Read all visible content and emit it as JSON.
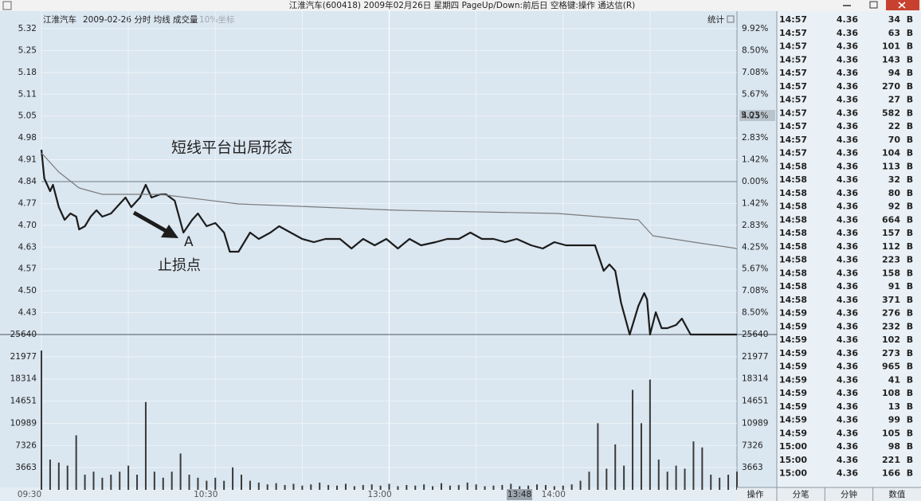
{
  "window": {
    "title": "江淮汽车(600418) 2009年02月26日 星期四 PageUp/Down:前后日 空格键:操作 通达信(R)"
  },
  "header": {
    "stock": "江淮汽车",
    "info": "2009-02-26 分时 均线 成交量",
    "coord": "10%坐标",
    "stats": "统计"
  },
  "cursor": {
    "price": "5.03",
    "time": "13:48"
  },
  "toolbar": {
    "left": "操作",
    "tabs": [
      "分笔",
      "分钟",
      "数值"
    ]
  },
  "chart_data": [
    {
      "type": "line",
      "annotations": [
        "短线平台出局形态",
        "A",
        "止损点"
      ],
      "xlim": [
        0,
        240
      ],
      "xticks": [
        {
          "value": 0,
          "label": "09:30"
        },
        {
          "value": 30,
          "label": null
        },
        {
          "value": 60,
          "label": "10:30"
        },
        {
          "value": 90,
          "label": null
        },
        {
          "value": 120,
          "label": "13:00"
        },
        {
          "value": 150,
          "label": null
        },
        {
          "value": 180,
          "label": "14:00"
        },
        {
          "value": 210,
          "label": null
        }
      ],
      "ylim": [
        4.3599,
        5.3201
      ],
      "yticks": [
        {
          "value": 5.3201,
          "label": "5.32"
        },
        {
          "value": 5.2514,
          "label": "5.25"
        },
        {
          "value": 5.1827,
          "label": "5.18"
        },
        {
          "value": 5.1144,
          "label": "5.11"
        },
        {
          "value": 5.0457,
          "label": "5.05"
        },
        {
          "value": 4.977,
          "label": "4.98"
        },
        {
          "value": 4.9087,
          "label": "4.91"
        },
        {
          "value": 4.84,
          "label": "4.84"
        },
        {
          "value": 4.7713,
          "label": "4.77"
        },
        {
          "value": 4.703,
          "label": "4.70"
        },
        {
          "value": 4.6343,
          "label": "4.63"
        },
        {
          "value": 4.5656,
          "label": "4.57"
        },
        {
          "value": 4.4973,
          "label": "4.50"
        },
        {
          "value": 4.4286,
          "label": "4.43"
        }
      ],
      "y2lim": [
        -9.92,
        9.92
      ],
      "y2ticks": [
        {
          "value": 9.92,
          "label": "9.92%"
        },
        {
          "value": 8.5,
          "label": "8.50%"
        },
        {
          "value": 7.08,
          "label": "7.08%"
        },
        {
          "value": 5.67,
          "label": "5.67%"
        },
        {
          "value": 4.25,
          "label": "4.25%"
        },
        {
          "value": 2.83,
          "label": "2.83%"
        },
        {
          "value": 1.42,
          "label": "1.42%"
        },
        {
          "value": 0,
          "label": "0.00%"
        },
        {
          "value": -1.42,
          "label": "1.42%"
        },
        {
          "value": -2.83,
          "label": "2.83%"
        },
        {
          "value": -4.25,
          "label": "4.25%"
        },
        {
          "value": -5.67,
          "label": "5.67%"
        },
        {
          "value": -7.08,
          "label": "7.08%"
        },
        {
          "value": -8.5,
          "label": "8.50%"
        }
      ],
      "grid": true,
      "series": [
        {
          "color": "#1c1c1c",
          "x": [
            0,
            1,
            3,
            4,
            6,
            8,
            10,
            12,
            13,
            15,
            17,
            19,
            21,
            24,
            27,
            29,
            31,
            34,
            36,
            38,
            41,
            43,
            46,
            49,
            52,
            54,
            57,
            60,
            63,
            65,
            68,
            72,
            75,
            79,
            82,
            86,
            90,
            94,
            98,
            103,
            107,
            111,
            115,
            119,
            123,
            127,
            131,
            136,
            140,
            144,
            148,
            152,
            156,
            160,
            164,
            169,
            173,
            177,
            181,
            185,
            191,
            194,
            196,
            198,
            200,
            203,
            206,
            208,
            209,
            210,
            212,
            214,
            216,
            219,
            221,
            224,
            240
          ],
          "values": [
            4.94,
            4.85,
            4.81,
            4.83,
            4.76,
            4.72,
            4.74,
            4.73,
            4.69,
            4.7,
            4.73,
            4.75,
            4.73,
            4.74,
            4.77,
            4.79,
            4.76,
            4.79,
            4.83,
            4.79,
            4.8,
            4.8,
            4.78,
            4.68,
            4.72,
            4.74,
            4.7,
            4.71,
            4.68,
            4.62,
            4.62,
            4.68,
            4.66,
            4.68,
            4.7,
            4.68,
            4.66,
            4.65,
            4.66,
            4.66,
            4.63,
            4.66,
            4.64,
            4.66,
            4.63,
            4.66,
            4.64,
            4.65,
            4.66,
            4.66,
            4.68,
            4.66,
            4.66,
            4.65,
            4.66,
            4.64,
            4.63,
            4.65,
            4.64,
            4.64,
            4.64,
            4.56,
            4.58,
            4.56,
            4.46,
            4.36,
            4.45,
            4.49,
            4.47,
            4.36,
            4.43,
            4.38,
            4.38,
            4.39,
            4.41,
            4.36,
            4.36
          ]
        },
        {
          "color": "#7a7a7a",
          "x": [
            0,
            6,
            13,
            21,
            41,
            68,
            123,
            178,
            206,
            211,
            225,
            240
          ],
          "values": [
            4.93,
            4.87,
            4.82,
            4.8,
            4.8,
            4.77,
            4.75,
            4.74,
            4.72,
            4.67,
            4.65,
            4.63
          ]
        }
      ]
    },
    {
      "type": "bar",
      "xlim": [
        0,
        240
      ],
      "ylim": [
        0,
        25640
      ],
      "yticks": [
        25640,
        21977,
        18314,
        14651,
        10989,
        7326,
        3663
      ],
      "color": "#3a3a3a",
      "x": [
        0,
        3,
        6,
        9,
        12,
        15,
        18,
        21,
        24,
        27,
        30,
        33,
        36,
        39,
        42,
        45,
        48,
        51,
        54,
        57,
        60,
        63,
        66,
        69,
        72,
        75,
        78,
        81,
        84,
        87,
        90,
        93,
        96,
        99,
        102,
        105,
        108,
        111,
        114,
        117,
        120,
        123,
        126,
        129,
        132,
        135,
        138,
        141,
        144,
        147,
        150,
        153,
        156,
        159,
        162,
        165,
        168,
        171,
        174,
        177,
        180,
        183,
        186,
        189,
        192,
        195,
        198,
        201,
        204,
        207,
        210,
        213,
        216,
        219,
        222,
        225,
        228,
        231,
        234,
        237,
        240
      ],
      "values": [
        23000,
        5000,
        4500,
        4000,
        9000,
        2500,
        3000,
        2000,
        2500,
        3000,
        4000,
        2500,
        14500,
        3000,
        2000,
        3000,
        6000,
        2500,
        2000,
        1500,
        2000,
        1500,
        3700,
        2500,
        1500,
        1200,
        900,
        1100,
        800,
        1000,
        700,
        900,
        1200,
        800,
        700,
        1000,
        600,
        800,
        900,
        700,
        1000,
        600,
        800,
        700,
        900,
        600,
        1100,
        700,
        800,
        1200,
        900,
        600,
        700,
        800,
        1000,
        600,
        700,
        900,
        800,
        600,
        700,
        900,
        1500,
        3000,
        11000,
        3500,
        7500,
        4000,
        16500,
        11000,
        18200,
        5000,
        3000,
        4000,
        3500,
        8000,
        7000,
        2500,
        2000,
        2500,
        3000
      ]
    }
  ],
  "trades": [
    [
      "14:57",
      4.36,
      34,
      "B"
    ],
    [
      "14:57",
      4.36,
      63,
      "B"
    ],
    [
      "14:57",
      4.36,
      101,
      "B"
    ],
    [
      "14:57",
      4.36,
      143,
      "B"
    ],
    [
      "14:57",
      4.36,
      94,
      "B"
    ],
    [
      "14:57",
      4.36,
      270,
      "B"
    ],
    [
      "14:57",
      4.36,
      27,
      "B"
    ],
    [
      "14:57",
      4.36,
      582,
      "B"
    ],
    [
      "14:57",
      4.36,
      22,
      "B"
    ],
    [
      "14:57",
      4.36,
      70,
      "B"
    ],
    [
      "14:57",
      4.36,
      104,
      "B"
    ],
    [
      "14:58",
      4.36,
      113,
      "B"
    ],
    [
      "14:58",
      4.36,
      32,
      "B"
    ],
    [
      "14:58",
      4.36,
      80,
      "B"
    ],
    [
      "14:58",
      4.36,
      92,
      "B"
    ],
    [
      "14:58",
      4.36,
      664,
      "B"
    ],
    [
      "14:58",
      4.36,
      157,
      "B"
    ],
    [
      "14:58",
      4.36,
      112,
      "B"
    ],
    [
      "14:58",
      4.36,
      223,
      "B"
    ],
    [
      "14:58",
      4.36,
      158,
      "B"
    ],
    [
      "14:58",
      4.36,
      91,
      "B"
    ],
    [
      "14:58",
      4.36,
      371,
      "B"
    ],
    [
      "14:59",
      4.36,
      276,
      "B"
    ],
    [
      "14:59",
      4.36,
      232,
      "B"
    ],
    [
      "14:59",
      4.36,
      102,
      "B"
    ],
    [
      "14:59",
      4.36,
      273,
      "B"
    ],
    [
      "14:59",
      4.36,
      965,
      "B"
    ],
    [
      "14:59",
      4.36,
      41,
      "B"
    ],
    [
      "14:59",
      4.36,
      108,
      "B"
    ],
    [
      "14:59",
      4.36,
      13,
      "B"
    ],
    [
      "14:59",
      4.36,
      99,
      "B"
    ],
    [
      "14:59",
      4.36,
      105,
      "B"
    ],
    [
      "15:00",
      4.36,
      98,
      "B"
    ],
    [
      "15:00",
      4.36,
      221,
      "B"
    ],
    [
      "15:00",
      4.36,
      166,
      "B"
    ]
  ]
}
